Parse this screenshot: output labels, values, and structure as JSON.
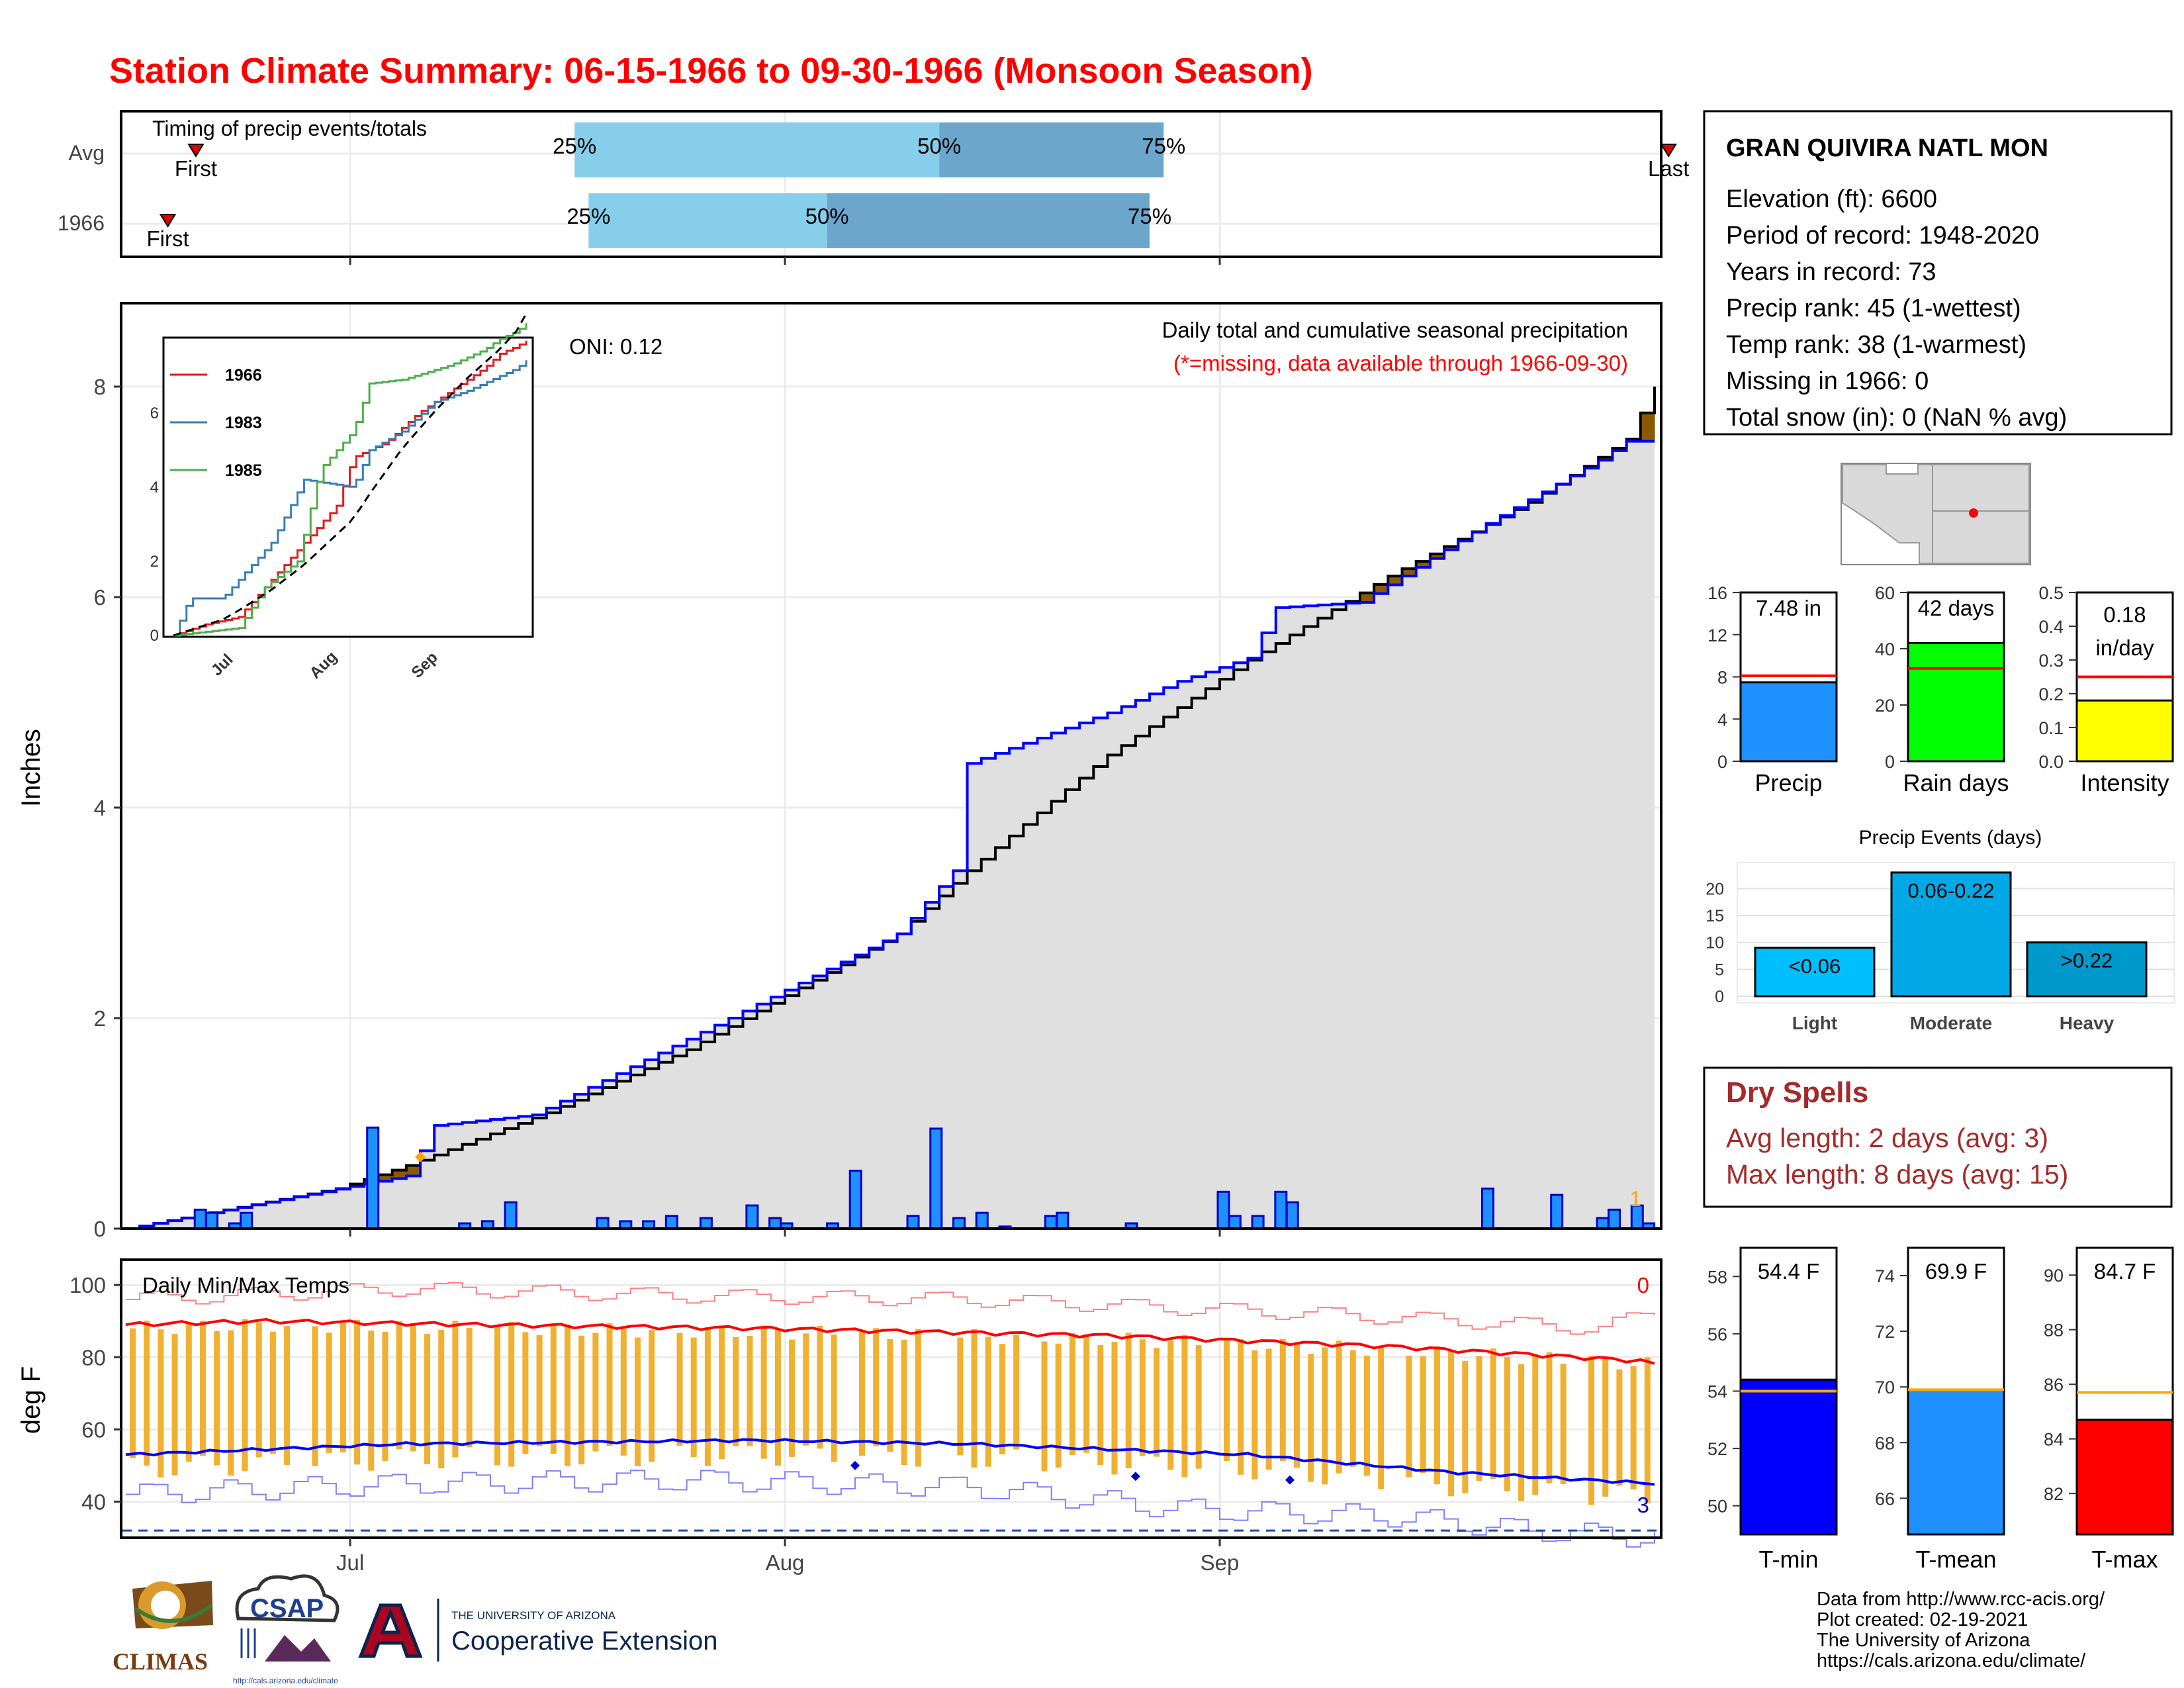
{
  "title": "Station Climate Summary: 06-15-1966 to 09-30-1966 (Monsoon Season)",
  "station": {
    "name": "GRAN QUIVIRA NATL MON",
    "elevation": "Elevation (ft): 6600",
    "period": "Period of record: 1948-2020",
    "years": "Years in record: 73",
    "precip_rank": "Precip rank: 45 (1-wettest)",
    "temp_rank": "Temp rank: 38 (1-warmest)",
    "missing": "Missing in 1966: 0",
    "snow": "Total snow (in): 0 (NaN % avg)"
  },
  "timing": {
    "title": "Timing of precip events/totals",
    "row_labels": [
      "Avg",
      "1966"
    ],
    "first_label": "First",
    "last_label": "Last",
    "pct_labels": [
      "25%",
      "50%",
      "75%"
    ],
    "avg": {
      "first_day": 5,
      "p25": 32,
      "p50": 58,
      "p75": 74,
      "last_day": 110
    },
    "year": {
      "first_day": 3,
      "p25": 33,
      "p50": 50,
      "p75": 73,
      "last_day": 114
    }
  },
  "main": {
    "ylabel": "Inches",
    "oni": "ONI: 0.12",
    "subtitle": "Daily total and cumulative seasonal precipitation",
    "note": "(*=missing, data available through 1966-09-30)",
    "missing_count": "1",
    "y_ticks": [
      "0",
      "2",
      "4",
      "6",
      "8"
    ],
    "x_ticks": [
      "Jul",
      "Aug",
      "Sep"
    ]
  },
  "inset": {
    "legend": [
      "1966",
      "1983",
      "1985"
    ],
    "colors": [
      "#e41a1c",
      "#377eb8",
      "#4daf4a"
    ],
    "y_ticks": [
      "0",
      "2",
      "4",
      "6"
    ],
    "x_ticks": [
      "Jul",
      "Aug",
      "Sep"
    ]
  },
  "bars3": {
    "precip": {
      "label": "Precip",
      "value_text": "7.48 in",
      "ticks": [
        "0",
        "4",
        "8",
        "12",
        "16"
      ]
    },
    "raindays": {
      "label": "Rain days",
      "value_text": "42 days",
      "ticks": [
        "0",
        "20",
        "40",
        "60"
      ]
    },
    "intensity": {
      "label": "Intensity",
      "value_text_1": "0.18",
      "value_text_2": "in/day",
      "ticks": [
        "0.0",
        "0.1",
        "0.2",
        "0.3",
        "0.4",
        "0.5"
      ]
    }
  },
  "events": {
    "title": "Precip Events (days)",
    "ticks": [
      "0",
      "5",
      "10",
      "15",
      "20"
    ],
    "categories": [
      "Light",
      "Moderate",
      "Heavy"
    ],
    "bar_labels": [
      "<0.06",
      "0.06-0.22",
      ">0.22"
    ],
    "colors": [
      "#00BFFF",
      "#00A9E6",
      "#0099CC"
    ]
  },
  "dry_spells": {
    "title": "Dry Spells",
    "avg": "Avg length: 2 days (avg: 3)",
    "max": "Max length: 8 days (avg: 15)"
  },
  "temp": {
    "title": "Daily Min/Max Temps",
    "ylabel": "deg F",
    "y_ticks": [
      "40",
      "60",
      "80",
      "100"
    ],
    "hot_count": "0",
    "cold_count": "3"
  },
  "temp_bars": {
    "tmin": {
      "label": "T-min",
      "value_text": "54.4 F",
      "ticks": [
        "50",
        "52",
        "54",
        "56",
        "58"
      ]
    },
    "tmean": {
      "label": "T-mean",
      "value_text": "69.9 F",
      "ticks": [
        "66",
        "68",
        "70",
        "72",
        "74"
      ]
    },
    "tmax": {
      "label": "T-max",
      "value_text": "84.7 F",
      "ticks": [
        "82",
        "84",
        "86",
        "88",
        "90"
      ]
    }
  },
  "footer": {
    "lines": [
      "Data from http://www.rcc-acis.org/",
      "Plot created: 02-19-2021",
      "The University of Arizona",
      "https://cals.arizona.edu/climate/"
    ],
    "logo_climas": "CLIMAS",
    "logo_csap": "CSAP",
    "logo_ua_small": "THE UNIVERSITY OF ARIZONA",
    "logo_ua_big": "Cooperative Extension",
    "logo_csap_url": "http://cals.arizona.edu/climate"
  },
  "chart_data": [
    {
      "type": "area",
      "name": "cumulative precipitation",
      "x_start": "1966-06-15",
      "x_end": "1966-09-30",
      "ylim": [
        0,
        8.8
      ],
      "cum_avg_knots": [
        [
          0,
          0
        ],
        [
          15,
          0.38
        ],
        [
          20,
          0.6
        ],
        [
          30,
          1.1
        ],
        [
          40,
          1.7
        ],
        [
          55,
          2.8
        ],
        [
          60,
          3.4
        ],
        [
          70,
          4.5
        ],
        [
          80,
          5.4
        ],
        [
          90,
          6.2
        ],
        [
          100,
          6.9
        ],
        [
          107,
          7.5
        ],
        [
          109,
          8.0
        ]
      ],
      "cum_1966_knots": [
        [
          0,
          0
        ],
        [
          20,
          0.5
        ],
        [
          22,
          0.98
        ],
        [
          29,
          1.08
        ],
        [
          40,
          1.8
        ],
        [
          55,
          2.8
        ],
        [
          59,
          3.4
        ],
        [
          60,
          4.42
        ],
        [
          70,
          4.9
        ],
        [
          75,
          5.2
        ],
        [
          80,
          5.42
        ],
        [
          82,
          5.9
        ],
        [
          88,
          5.95
        ],
        [
          97,
          6.7
        ],
        [
          105,
          7.3
        ],
        [
          107,
          7.48
        ],
        [
          109,
          7.48
        ]
      ],
      "daily_precip_1966": [
        [
          6,
          0.18
        ],
        [
          7,
          0.15
        ],
        [
          9,
          0.05
        ],
        [
          10,
          0.15
        ],
        [
          21,
          0.96
        ],
        [
          29,
          0.05
        ],
        [
          31,
          0.07
        ],
        [
          31,
          0.07
        ],
        [
          33,
          0.25
        ],
        [
          41,
          0.1
        ],
        [
          43,
          0.07
        ],
        [
          45,
          0.07
        ],
        [
          47,
          0.12
        ],
        [
          50,
          0.1
        ],
        [
          54,
          0.22
        ],
        [
          56,
          0.1
        ],
        [
          57,
          0.05
        ],
        [
          61,
          0.05
        ],
        [
          63,
          0.55
        ],
        [
          68,
          0.12
        ],
        [
          70,
          0.95
        ],
        [
          72,
          0.1
        ],
        [
          74,
          0.15
        ],
        [
          76,
          0.02
        ],
        [
          80,
          0.12
        ],
        [
          81,
          0.15
        ],
        [
          87,
          0.05
        ],
        [
          95,
          0.35
        ],
        [
          96,
          0.12
        ],
        [
          98,
          0.12
        ],
        [
          100,
          0.35
        ],
        [
          101,
          0.25
        ],
        [
          118,
          0.38
        ],
        [
          124,
          0.32
        ],
        [
          128,
          0.1
        ],
        [
          129,
          0.18
        ],
        [
          131,
          0.22
        ],
        [
          132,
          0.05
        ]
      ]
    },
    {
      "type": "line",
      "name": "inset cumulative precipitation",
      "series": [
        {
          "name": "1966"
        },
        {
          "name": "1983"
        },
        {
          "name": "1985"
        }
      ],
      "ylim": [
        0,
        8
      ]
    },
    {
      "type": "bar",
      "name": "Precip",
      "value": 7.48,
      "avg": 8.1,
      "ylim": [
        0,
        16
      ]
    },
    {
      "type": "bar",
      "name": "Rain days",
      "value": 42,
      "avg": 33,
      "ylim": [
        0,
        60
      ]
    },
    {
      "type": "bar",
      "name": "Intensity",
      "value": 0.18,
      "avg": 0.25,
      "ylim": [
        0,
        0.5
      ]
    },
    {
      "type": "bar",
      "name": "Precip Events (days)",
      "categories": [
        "Light",
        "Moderate",
        "Heavy"
      ],
      "values": [
        9,
        23,
        10
      ],
      "ylim": [
        0,
        23
      ]
    },
    {
      "type": "line",
      "name": "Daily Min/Max Temps",
      "ylim": [
        30,
        107
      ],
      "avg_max_knots": [
        [
          0,
          89
        ],
        [
          10,
          90
        ],
        [
          25,
          89
        ],
        [
          45,
          88
        ],
        [
          70,
          86
        ],
        [
          90,
          83
        ],
        [
          108,
          79
        ],
        [
          109,
          78
        ]
      ],
      "avg_min_knots": [
        [
          0,
          53
        ],
        [
          20,
          56
        ],
        [
          45,
          57
        ],
        [
          60,
          56
        ],
        [
          80,
          53
        ],
        [
          95,
          48
        ],
        [
          109,
          45
        ]
      ],
      "record_max_knots": [
        [
          0,
          96
        ],
        [
          20,
          99
        ],
        [
          40,
          97
        ],
        [
          60,
          96
        ],
        [
          85,
          92
        ],
        [
          105,
          88
        ],
        [
          109,
          93
        ]
      ],
      "record_min_knots": [
        [
          0,
          42
        ],
        [
          20,
          45
        ],
        [
          40,
          46
        ],
        [
          60,
          44
        ],
        [
          75,
          38
        ],
        [
          90,
          36
        ],
        [
          100,
          32
        ],
        [
          109,
          30
        ]
      ],
      "freezing_line": 32
    },
    {
      "type": "bar",
      "name": "T-min",
      "value": 54.4,
      "avg": 54.0,
      "ylim": [
        49,
        59
      ]
    },
    {
      "type": "bar",
      "name": "T-mean",
      "value": 69.9,
      "avg": 69.9,
      "ylim": [
        64.7,
        75
      ]
    },
    {
      "type": "bar",
      "name": "T-max",
      "value": 84.7,
      "avg": 85.7,
      "ylim": [
        80.5,
        91
      ]
    }
  ]
}
